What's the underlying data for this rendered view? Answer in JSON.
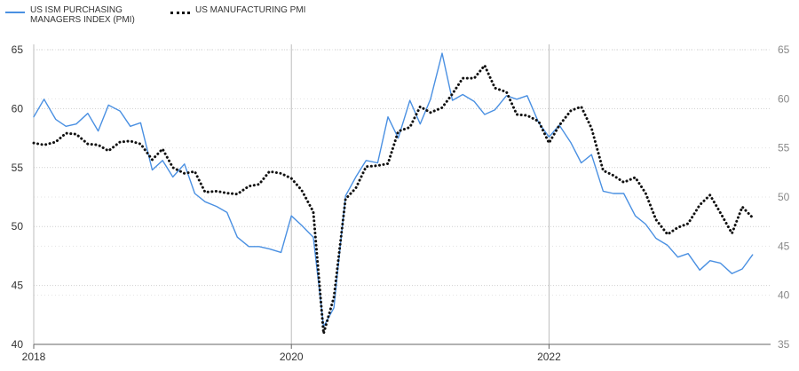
{
  "chart_data": {
    "type": "line",
    "legend_position": "top-left",
    "grid": true,
    "x_ticks": [
      "2018",
      "2020",
      "2022"
    ],
    "y_left": {
      "range": [
        40,
        65
      ],
      "ticks": [
        "40",
        "45",
        "50",
        "55",
        "60",
        "65"
      ]
    },
    "y_right": {
      "range": [
        35,
        65
      ],
      "ticks": [
        "35",
        "40",
        "45",
        "50",
        "55",
        "60",
        "65"
      ]
    },
    "series": [
      {
        "name": "US ISM PURCHASING MANAGERS INDEX (PMI)",
        "axis": "left",
        "color": "#4a90e2",
        "style": "solid",
        "points": [
          [
            2018.0,
            59.3
          ],
          [
            2018.08,
            60.8
          ],
          [
            2018.17,
            59.1
          ],
          [
            2018.25,
            58.5
          ],
          [
            2018.33,
            58.7
          ],
          [
            2018.42,
            59.6
          ],
          [
            2018.5,
            58.1
          ],
          [
            2018.58,
            60.3
          ],
          [
            2018.67,
            59.8
          ],
          [
            2018.75,
            58.5
          ],
          [
            2018.83,
            58.8
          ],
          [
            2018.92,
            54.8
          ],
          [
            2019.0,
            55.6
          ],
          [
            2019.08,
            54.2
          ],
          [
            2019.17,
            55.3
          ],
          [
            2019.25,
            52.8
          ],
          [
            2019.33,
            52.1
          ],
          [
            2019.42,
            51.7
          ],
          [
            2019.5,
            51.2
          ],
          [
            2019.58,
            49.1
          ],
          [
            2019.67,
            48.3
          ],
          [
            2019.75,
            48.3
          ],
          [
            2019.83,
            48.1
          ],
          [
            2019.92,
            47.8
          ],
          [
            2020.0,
            50.9
          ],
          [
            2020.08,
            50.1
          ],
          [
            2020.17,
            49.1
          ],
          [
            2020.25,
            41.5
          ],
          [
            2020.33,
            43.1
          ],
          [
            2020.42,
            52.6
          ],
          [
            2020.5,
            54.2
          ],
          [
            2020.58,
            55.6
          ],
          [
            2020.67,
            55.4
          ],
          [
            2020.75,
            59.3
          ],
          [
            2020.83,
            57.5
          ],
          [
            2020.92,
            60.7
          ],
          [
            2021.0,
            58.7
          ],
          [
            2021.08,
            60.8
          ],
          [
            2021.17,
            64.7
          ],
          [
            2021.25,
            60.7
          ],
          [
            2021.33,
            61.2
          ],
          [
            2021.42,
            60.6
          ],
          [
            2021.5,
            59.5
          ],
          [
            2021.58,
            59.9
          ],
          [
            2021.67,
            61.1
          ],
          [
            2021.75,
            60.8
          ],
          [
            2021.83,
            61.1
          ],
          [
            2021.92,
            58.8
          ],
          [
            2022.0,
            57.6
          ],
          [
            2022.08,
            58.6
          ],
          [
            2022.17,
            57.1
          ],
          [
            2022.25,
            55.4
          ],
          [
            2022.33,
            56.1
          ],
          [
            2022.42,
            53.0
          ],
          [
            2022.5,
            52.8
          ],
          [
            2022.58,
            52.8
          ],
          [
            2022.67,
            50.9
          ],
          [
            2022.75,
            50.2
          ],
          [
            2022.83,
            49.0
          ],
          [
            2022.92,
            48.4
          ],
          [
            2023.0,
            47.4
          ],
          [
            2023.08,
            47.7
          ],
          [
            2023.17,
            46.3
          ],
          [
            2023.25,
            47.1
          ],
          [
            2023.33,
            46.9
          ],
          [
            2023.42,
            46.0
          ],
          [
            2023.5,
            46.4
          ],
          [
            2023.58,
            47.6
          ]
        ]
      },
      {
        "name": "US MANUFACTURING PMI",
        "axis": "right",
        "color": "#111111",
        "style": "dotted",
        "points": [
          [
            2018.0,
            55.5
          ],
          [
            2018.08,
            55.3
          ],
          [
            2018.17,
            55.6
          ],
          [
            2018.25,
            56.5
          ],
          [
            2018.33,
            56.4
          ],
          [
            2018.42,
            55.4
          ],
          [
            2018.5,
            55.3
          ],
          [
            2018.58,
            54.7
          ],
          [
            2018.67,
            55.6
          ],
          [
            2018.75,
            55.7
          ],
          [
            2018.83,
            55.4
          ],
          [
            2018.92,
            53.8
          ],
          [
            2019.0,
            54.9
          ],
          [
            2019.08,
            53.0
          ],
          [
            2019.17,
            52.4
          ],
          [
            2019.25,
            52.6
          ],
          [
            2019.33,
            50.5
          ],
          [
            2019.42,
            50.6
          ],
          [
            2019.5,
            50.4
          ],
          [
            2019.58,
            50.3
          ],
          [
            2019.67,
            51.1
          ],
          [
            2019.75,
            51.3
          ],
          [
            2019.83,
            52.6
          ],
          [
            2019.92,
            52.4
          ],
          [
            2020.0,
            51.9
          ],
          [
            2020.08,
            50.7
          ],
          [
            2020.17,
            48.5
          ],
          [
            2020.25,
            36.1
          ],
          [
            2020.33,
            39.8
          ],
          [
            2020.42,
            49.8
          ],
          [
            2020.5,
            50.9
          ],
          [
            2020.58,
            53.1
          ],
          [
            2020.67,
            53.2
          ],
          [
            2020.75,
            53.4
          ],
          [
            2020.83,
            56.7
          ],
          [
            2020.92,
            57.1
          ],
          [
            2021.0,
            59.2
          ],
          [
            2021.08,
            58.6
          ],
          [
            2021.17,
            59.1
          ],
          [
            2021.25,
            60.5
          ],
          [
            2021.33,
            62.1
          ],
          [
            2021.42,
            62.1
          ],
          [
            2021.5,
            63.4
          ],
          [
            2021.58,
            61.1
          ],
          [
            2021.67,
            60.7
          ],
          [
            2021.75,
            58.4
          ],
          [
            2021.83,
            58.3
          ],
          [
            2021.92,
            57.7
          ],
          [
            2022.0,
            55.5
          ],
          [
            2022.08,
            57.3
          ],
          [
            2022.17,
            58.8
          ],
          [
            2022.25,
            59.2
          ],
          [
            2022.33,
            57.0
          ],
          [
            2022.42,
            52.7
          ],
          [
            2022.5,
            52.2
          ],
          [
            2022.58,
            51.5
          ],
          [
            2022.67,
            52.0
          ],
          [
            2022.75,
            50.4
          ],
          [
            2022.83,
            47.7
          ],
          [
            2022.92,
            46.2
          ],
          [
            2023.0,
            46.9
          ],
          [
            2023.08,
            47.3
          ],
          [
            2023.17,
            49.2
          ],
          [
            2023.25,
            50.2
          ],
          [
            2023.33,
            48.4
          ],
          [
            2023.42,
            46.3
          ],
          [
            2023.5,
            49.0
          ],
          [
            2023.58,
            47.9
          ]
        ]
      }
    ]
  }
}
